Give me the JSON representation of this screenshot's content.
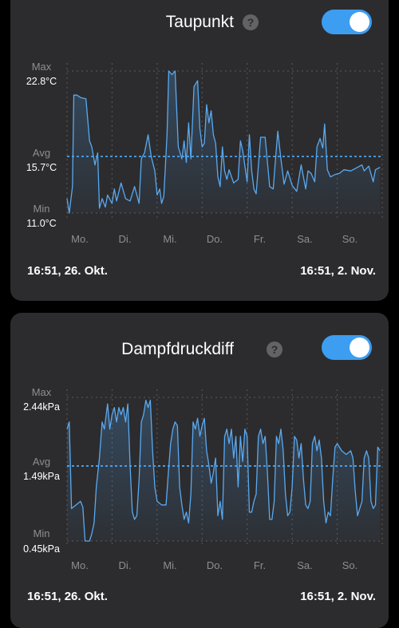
{
  "cards": [
    {
      "title": "Taupunkt",
      "help_glyph": "?",
      "toggle_on": true,
      "range_start": "16:51,  26. Okt.",
      "range_end": "16:51,  2. Nov.",
      "chart_data": {
        "type": "line",
        "max_label": "Max",
        "max_value": "22.8°C",
        "avg_label": "Avg",
        "avg_value": "15.7°C",
        "min_label": "Min",
        "min_value": "11.0°C",
        "ylim": [
          11.0,
          22.8
        ],
        "avg": 15.7,
        "categories": [
          "Mo.",
          "Di.",
          "Mi.",
          "Do.",
          "Fr.",
          "Sa.",
          "So."
        ],
        "x_range": [
          0,
          7
        ],
        "grid": true,
        "line_color": "#5aa9f0",
        "points": [
          [
            0,
            12.2
          ],
          [
            0.05,
            11.0
          ],
          [
            0.12,
            13.2
          ],
          [
            0.15,
            20.8
          ],
          [
            0.22,
            20.8
          ],
          [
            0.3,
            20.6
          ],
          [
            0.42,
            20.5
          ],
          [
            0.5,
            17.0
          ],
          [
            0.55,
            16.5
          ],
          [
            0.62,
            15.0
          ],
          [
            0.68,
            16.0
          ],
          [
            0.72,
            11.4
          ],
          [
            0.78,
            12.2
          ],
          [
            0.85,
            11.5
          ],
          [
            0.9,
            12.5
          ],
          [
            1.0,
            11.8
          ],
          [
            1.05,
            13.0
          ],
          [
            1.1,
            12.0
          ],
          [
            1.2,
            13.5
          ],
          [
            1.3,
            12.2
          ],
          [
            1.4,
            12.0
          ],
          [
            1.5,
            13.2
          ],
          [
            1.6,
            11.8
          ],
          [
            1.65,
            15.5
          ],
          [
            1.72,
            16.0
          ],
          [
            1.8,
            17.5
          ],
          [
            1.87,
            15.7
          ],
          [
            1.95,
            14.5
          ],
          [
            2.0,
            12.5
          ],
          [
            2.06,
            13.0
          ],
          [
            2.1,
            11.8
          ],
          [
            2.15,
            12.4
          ],
          [
            2.22,
            17.5
          ],
          [
            2.26,
            22.8
          ],
          [
            2.33,
            22.5
          ],
          [
            2.4,
            22.8
          ],
          [
            2.47,
            16.5
          ],
          [
            2.55,
            15.5
          ],
          [
            2.6,
            17.0
          ],
          [
            2.65,
            15.2
          ],
          [
            2.7,
            18.5
          ],
          [
            2.75,
            15.5
          ],
          [
            2.82,
            21.5
          ],
          [
            2.9,
            22.0
          ],
          [
            2.95,
            18.0
          ],
          [
            3.0,
            16.5
          ],
          [
            3.05,
            16.8
          ],
          [
            3.1,
            20.0
          ],
          [
            3.15,
            18.5
          ],
          [
            3.2,
            19.5
          ],
          [
            3.25,
            17.5
          ],
          [
            3.3,
            16.8
          ],
          [
            3.35,
            14.0
          ],
          [
            3.4,
            13.2
          ],
          [
            3.45,
            16.5
          ],
          [
            3.5,
            14.5
          ],
          [
            3.55,
            13.8
          ],
          [
            3.6,
            14.6
          ],
          [
            3.7,
            13.5
          ],
          [
            3.8,
            13.8
          ],
          [
            3.85,
            17.0
          ],
          [
            3.9,
            16.2
          ],
          [
            4.0,
            13.6
          ],
          [
            4.05,
            17.5
          ],
          [
            4.1,
            14.5
          ],
          [
            4.15,
            13.0
          ],
          [
            4.2,
            12.6
          ],
          [
            4.3,
            17.3
          ],
          [
            4.4,
            17.3
          ],
          [
            4.5,
            13.2
          ],
          [
            4.58,
            13.0
          ],
          [
            4.62,
            15.0
          ],
          [
            4.68,
            17.8
          ],
          [
            4.75,
            15.5
          ],
          [
            4.82,
            13.4
          ],
          [
            4.9,
            14.5
          ],
          [
            5.0,
            13.3
          ],
          [
            5.1,
            12.8
          ],
          [
            5.2,
            15.0
          ],
          [
            5.3,
            13.0
          ],
          [
            5.35,
            14.5
          ],
          [
            5.42,
            14.3
          ],
          [
            5.5,
            13.6
          ],
          [
            5.55,
            16.5
          ],
          [
            5.62,
            17.2
          ],
          [
            5.68,
            16.4
          ],
          [
            5.72,
            18.4
          ],
          [
            5.78,
            14.6
          ],
          [
            5.85,
            14.0
          ],
          [
            5.95,
            14.2
          ],
          [
            6.05,
            14.3
          ],
          [
            6.15,
            14.6
          ],
          [
            6.3,
            14.5
          ],
          [
            6.45,
            14.8
          ],
          [
            6.55,
            15.0
          ],
          [
            6.6,
            14.5
          ],
          [
            6.7,
            14.9
          ],
          [
            6.8,
            13.6
          ],
          [
            6.85,
            14.6
          ],
          [
            6.95,
            14.8
          ]
        ]
      }
    },
    {
      "title": "Dampfdruckdiff",
      "help_glyph": "?",
      "toggle_on": true,
      "range_start": "16:51,  26. Okt.",
      "range_end": "16:51,  2. Nov.",
      "chart_data": {
        "type": "line",
        "max_label": "Max",
        "max_value": "2.44kPa",
        "avg_label": "Avg",
        "avg_value": "1.49kPa",
        "min_label": "Min",
        "min_value": "0.45kPa",
        "ylim": [
          0.45,
          2.44
        ],
        "avg": 1.49,
        "categories": [
          "Mo.",
          "Di.",
          "Mi.",
          "Do.",
          "Fr.",
          "Sa.",
          "So."
        ],
        "x_range": [
          0,
          7
        ],
        "grid": true,
        "line_color": "#5aa9f0",
        "points": [
          [
            0,
            2.0
          ],
          [
            0.05,
            2.1
          ],
          [
            0.1,
            0.9
          ],
          [
            0.2,
            0.95
          ],
          [
            0.3,
            1.0
          ],
          [
            0.35,
            0.92
          ],
          [
            0.4,
            0.45
          ],
          [
            0.5,
            0.45
          ],
          [
            0.55,
            0.55
          ],
          [
            0.6,
            0.7
          ],
          [
            0.65,
            1.2
          ],
          [
            0.72,
            1.6
          ],
          [
            0.78,
            2.1
          ],
          [
            0.83,
            2.0
          ],
          [
            0.9,
            2.35
          ],
          [
            0.95,
            2.0
          ],
          [
            1.0,
            2.2
          ],
          [
            1.05,
            2.3
          ],
          [
            1.1,
            2.1
          ],
          [
            1.15,
            2.3
          ],
          [
            1.2,
            2.2
          ],
          [
            1.25,
            2.3
          ],
          [
            1.3,
            2.1
          ],
          [
            1.35,
            2.35
          ],
          [
            1.4,
            1.5
          ],
          [
            1.45,
            0.85
          ],
          [
            1.5,
            0.75
          ],
          [
            1.55,
            0.8
          ],
          [
            1.6,
            1.3
          ],
          [
            1.65,
            2.1
          ],
          [
            1.7,
            2.2
          ],
          [
            1.75,
            2.4
          ],
          [
            1.8,
            2.3
          ],
          [
            1.85,
            2.4
          ],
          [
            1.9,
            1.7
          ],
          [
            1.95,
            1.2
          ],
          [
            2.0,
            1.0
          ],
          [
            2.1,
            0.95
          ],
          [
            2.2,
            0.95
          ],
          [
            2.25,
            1.4
          ],
          [
            2.3,
            1.8
          ],
          [
            2.35,
            2.0
          ],
          [
            2.4,
            2.1
          ],
          [
            2.45,
            2.05
          ],
          [
            2.5,
            1.2
          ],
          [
            2.55,
            0.95
          ],
          [
            2.6,
            0.75
          ],
          [
            2.65,
            0.85
          ],
          [
            2.7,
            0.7
          ],
          [
            2.75,
            1.1
          ],
          [
            2.8,
            2.1
          ],
          [
            2.85,
            2.0
          ],
          [
            2.9,
            2.15
          ],
          [
            2.95,
            1.9
          ],
          [
            3.0,
            2.05
          ],
          [
            3.05,
            2.15
          ],
          [
            3.1,
            1.7
          ],
          [
            3.15,
            1.5
          ],
          [
            3.2,
            1.25
          ],
          [
            3.25,
            1.4
          ],
          [
            3.3,
            1.6
          ],
          [
            3.35,
            0.8
          ],
          [
            3.4,
            1.0
          ],
          [
            3.45,
            0.75
          ],
          [
            3.5,
            1.9
          ],
          [
            3.55,
            2.0
          ],
          [
            3.6,
            1.8
          ],
          [
            3.65,
            2.0
          ],
          [
            3.7,
            1.6
          ],
          [
            3.75,
            1.9
          ],
          [
            3.8,
            1.2
          ],
          [
            3.85,
            1.9
          ],
          [
            3.9,
            1.55
          ],
          [
            3.95,
            2.0
          ],
          [
            4.0,
            1.9
          ],
          [
            4.05,
            0.85
          ],
          [
            4.1,
            0.85
          ],
          [
            4.15,
            1.0
          ],
          [
            4.2,
            1.1
          ],
          [
            4.25,
            1.9
          ],
          [
            4.3,
            2.0
          ],
          [
            4.35,
            1.8
          ],
          [
            4.4,
            1.9
          ],
          [
            4.45,
            1.4
          ],
          [
            4.5,
            0.75
          ],
          [
            4.55,
            0.75
          ],
          [
            4.6,
            1.0
          ],
          [
            4.65,
            1.9
          ],
          [
            4.7,
            1.8
          ],
          [
            4.75,
            2.0
          ],
          [
            4.8,
            1.7
          ],
          [
            4.85,
            1.1
          ],
          [
            4.9,
            0.8
          ],
          [
            4.95,
            0.85
          ],
          [
            5.0,
            1.2
          ],
          [
            5.05,
            1.9
          ],
          [
            5.1,
            1.85
          ],
          [
            5.15,
            1.6
          ],
          [
            5.2,
            1.8
          ],
          [
            5.25,
            1.3
          ],
          [
            5.3,
            0.95
          ],
          [
            5.35,
            0.9
          ],
          [
            5.4,
            1.0
          ],
          [
            5.45,
            1.8
          ],
          [
            5.5,
            1.9
          ],
          [
            5.55,
            1.7
          ],
          [
            5.6,
            1.85
          ],
          [
            5.65,
            1.6
          ],
          [
            5.7,
            1.0
          ],
          [
            5.75,
            0.7
          ],
          [
            5.8,
            0.85
          ],
          [
            5.85,
            0.8
          ],
          [
            5.9,
            1.3
          ],
          [
            5.95,
            1.75
          ],
          [
            6.0,
            1.8
          ],
          [
            6.1,
            1.7
          ],
          [
            6.2,
            1.65
          ],
          [
            6.3,
            1.7
          ],
          [
            6.35,
            1.6
          ],
          [
            6.4,
            1.15
          ],
          [
            6.45,
            0.8
          ],
          [
            6.5,
            0.9
          ],
          [
            6.55,
            1.0
          ],
          [
            6.6,
            1.6
          ],
          [
            6.65,
            1.7
          ],
          [
            6.7,
            1.6
          ],
          [
            6.75,
            1.0
          ],
          [
            6.8,
            0.9
          ],
          [
            6.85,
            0.95
          ],
          [
            6.9,
            1.75
          ],
          [
            6.95,
            1.7
          ]
        ]
      }
    }
  ]
}
